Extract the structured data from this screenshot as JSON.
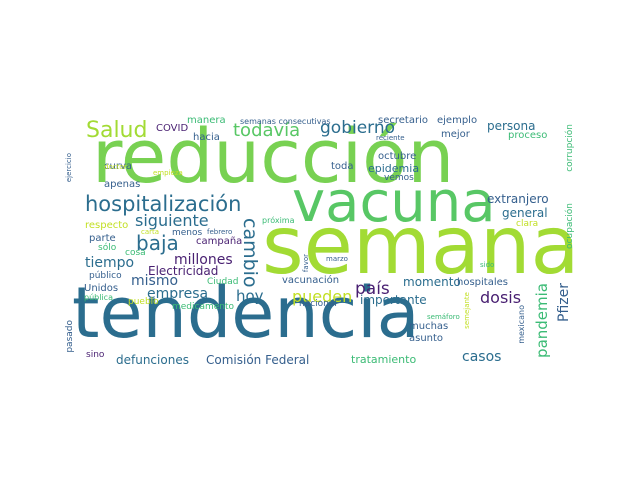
{
  "words": [
    "tendencia",
    "semana",
    "reducción",
    "vacuna",
    "hospitalización",
    "Salud",
    "baja",
    "cambio",
    "todavía",
    "gobierno",
    "país",
    "siguiente",
    "mismo",
    "empresa",
    "tiempo",
    "millones",
    "pueden",
    "dosis",
    "pandemia",
    "Pfizer",
    "hoy",
    "casos",
    "defunciones",
    "Comisión Federal",
    "Electricidad",
    "persona",
    "general",
    "extranjero",
    "importante",
    "momento",
    "tratamiento",
    "COVID",
    "hacia",
    "manera",
    "semanas consecutivas",
    "secretario",
    "ejemplo",
    "mejor",
    "proceso",
    "corrupción",
    "ocupación",
    "curva",
    "apenas",
    "respecto",
    "parte",
    "sólo",
    "cosa",
    "público",
    "Unidos",
    "pública",
    "pueblo",
    "medicamento",
    "Ciudad",
    "nacional",
    "vacunación",
    "hospitales",
    "muchas",
    "asunto",
    "mexicano",
    "semáforo",
    "semejante",
    "sido",
    "marzo",
    "favor",
    "próxima",
    "febrero",
    "carta",
    "menos",
    "campaña",
    "octubre",
    "epidemia",
    "vemos",
    "toda",
    "clara",
    "reciente",
    "ejercicio",
    "doctor",
    "empieza",
    "sino",
    "pasado"
  ]
}
